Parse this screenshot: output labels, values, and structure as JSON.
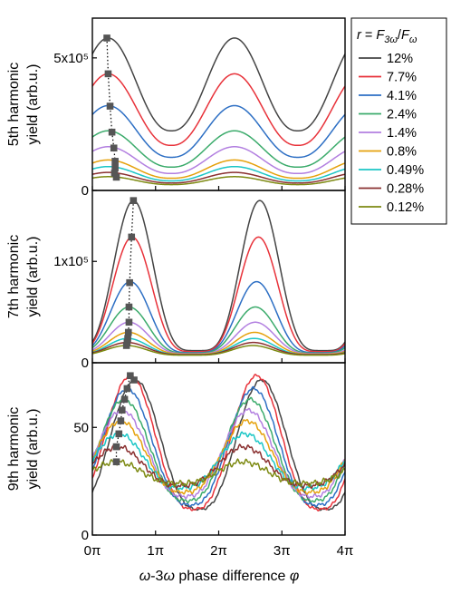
{
  "chart_data": [
    {
      "type": "line",
      "ylabel": "5th harmonic yield (arb.u.)",
      "ylabel_lines": [
        "5th harmonic",
        "yield (arb.u.)"
      ],
      "ylim": [
        0,
        650000
      ],
      "yticks": [
        {
          "value": 0,
          "label": "0"
        },
        {
          "value": 500000,
          "label": "5x10⁵"
        }
      ],
      "xlim": [
        0,
        4
      ],
      "x_unit": "π",
      "series": [
        {
          "name": "12%",
          "color": "#444444",
          "peaks_x": [
            0.25,
            2.25
          ],
          "peak": 575000,
          "trough": 225000,
          "marker": [
            0.23,
            575000
          ]
        },
        {
          "name": "7.7%",
          "color": "#e8323a",
          "peaks_x": [
            0.25,
            2.25
          ],
          "peak": 440000,
          "trough": 170000,
          "marker": [
            0.25,
            440000
          ]
        },
        {
          "name": "4.1%",
          "color": "#2d6fc4",
          "peaks_x": [
            0.25,
            2.25
          ],
          "peak": 320000,
          "trough": 125000,
          "marker": [
            0.28,
            318000
          ]
        },
        {
          "name": "2.4%",
          "color": "#3bab6b",
          "peaks_x": [
            0.25,
            2.25
          ],
          "peak": 225000,
          "trough": 88000,
          "marker": [
            0.31,
            220000
          ]
        },
        {
          "name": "1.4%",
          "color": "#b27fe0",
          "peaks_x": [
            0.25,
            2.25
          ],
          "peak": 165000,
          "trough": 64000,
          "marker": [
            0.34,
            160000
          ]
        },
        {
          "name": "0.8%",
          "color": "#e5a10c",
          "peaks_x": [
            0.25,
            2.25
          ],
          "peak": 115000,
          "trough": 46000,
          "marker": [
            0.36,
            110000
          ]
        },
        {
          "name": "0.49%",
          "color": "#1cc6c6",
          "peaks_x": [
            0.25,
            2.25
          ],
          "peak": 90000,
          "trough": 36000,
          "marker": [
            0.36,
            85000
          ]
        },
        {
          "name": "0.28%",
          "color": "#8a3030",
          "peaks_x": [
            0.25,
            2.25
          ],
          "peak": 68000,
          "trough": 28000,
          "marker": [
            0.35,
            65000
          ]
        },
        {
          "name": "0.12%",
          "color": "#7d8a12",
          "peaks_x": [
            0.25,
            2.25
          ],
          "peak": 52000,
          "trough": 22000,
          "marker": [
            0.38,
            50000
          ]
        }
      ]
    },
    {
      "type": "line",
      "ylabel": "7th harmonic yield (arb.u.)",
      "ylabel_lines": [
        "7th harmonic",
        "yield (arb.u.)"
      ],
      "ylim": [
        0,
        170000
      ],
      "yticks": [
        {
          "value": 0,
          "label": "0"
        },
        {
          "value": 100000,
          "label": "1x10⁵"
        }
      ],
      "xlim": [
        0,
        4
      ],
      "x_unit": "π",
      "series": [
        {
          "name": "12%",
          "peaks_x": [
            0.65,
            2.65
          ],
          "peak": 160000,
          "trough": 12000,
          "marker": [
            0.65,
            160000
          ]
        },
        {
          "name": "7.7%",
          "peaks_x": [
            0.63,
            2.63
          ],
          "peak": 124000,
          "trough": 11000,
          "marker": [
            0.62,
            124000
          ]
        },
        {
          "name": "4.1%",
          "peaks_x": [
            0.6,
            2.6
          ],
          "peak": 80000,
          "trough": 10000,
          "marker": [
            0.59,
            79000
          ]
        },
        {
          "name": "2.4%",
          "peaks_x": [
            0.58,
            2.58
          ],
          "peak": 55000,
          "trough": 9500,
          "marker": [
            0.58,
            55000
          ]
        },
        {
          "name": "1.4%",
          "peaks_x": [
            0.58,
            2.58
          ],
          "peak": 40000,
          "trough": 9000,
          "marker": [
            0.58,
            40000
          ]
        },
        {
          "name": "0.8%",
          "peaks_x": [
            0.57,
            2.57
          ],
          "peak": 30000,
          "trough": 8500,
          "marker": [
            0.57,
            30000
          ]
        },
        {
          "name": "0.49%",
          "peaks_x": [
            0.56,
            2.56
          ],
          "peak": 24000,
          "trough": 8000,
          "marker": [
            0.56,
            24000
          ]
        },
        {
          "name": "0.28%",
          "peaks_x": [
            0.55,
            2.55
          ],
          "peak": 20000,
          "trough": 8000,
          "marker": [
            0.55,
            20000
          ]
        },
        {
          "name": "0.12%",
          "peaks_x": [
            0.54,
            2.54
          ],
          "peak": 17000,
          "trough": 7500,
          "marker": [
            0.54,
            17000
          ]
        }
      ]
    },
    {
      "type": "line",
      "ylabel": "9th harmonic yield (arb.u.)",
      "ylabel_lines": [
        "9th harmonic",
        "yield (arb.u.)"
      ],
      "ylim": [
        0,
        80
      ],
      "yticks": [
        {
          "value": 0,
          "label": "0"
        },
        {
          "value": 50,
          "label": "50"
        }
      ],
      "xlim": [
        0,
        4
      ],
      "x_unit": "π",
      "series": [
        {
          "name": "12%",
          "peaks_x": [
            0.68,
            2.68
          ],
          "peak": 72,
          "trough": 12,
          "marker": [
            0.66,
            72
          ]
        },
        {
          "name": "7.7%",
          "peaks_x": [
            0.6,
            2.6
          ],
          "peak": 74,
          "trough": 12,
          "marker": [
            0.6,
            74
          ]
        },
        {
          "name": "4.1%",
          "peaks_x": [
            0.55,
            2.55
          ],
          "peak": 68,
          "trough": 14,
          "marker": [
            0.55,
            68
          ]
        },
        {
          "name": "2.4%",
          "peaks_x": [
            0.5,
            2.5
          ],
          "peak": 63,
          "trough": 16,
          "marker": [
            0.51,
            63
          ]
        },
        {
          "name": "1.4%",
          "peaks_x": [
            0.47,
            2.47
          ],
          "peak": 58,
          "trough": 18,
          "marker": [
            0.47,
            58
          ]
        },
        {
          "name": "0.8%",
          "peaks_x": [
            0.45,
            2.45
          ],
          "peak": 53,
          "trough": 20,
          "marker": [
            0.45,
            53
          ]
        },
        {
          "name": "0.49%",
          "peaks_x": [
            0.42,
            2.42
          ],
          "peak": 47,
          "trough": 22,
          "marker": [
            0.42,
            47
          ]
        },
        {
          "name": "0.28%",
          "peaks_x": [
            0.4,
            2.4
          ],
          "peak": 41,
          "trough": 23,
          "marker": [
            0.38,
            41
          ]
        },
        {
          "name": "0.12%",
          "peaks_x": [
            0.38,
            2.38
          ],
          "peak": 34,
          "trough": 24,
          "marker": [
            0.38,
            34
          ]
        }
      ]
    }
  ],
  "xaxis": {
    "ticks": [
      {
        "value": 0,
        "label": "0π"
      },
      {
        "value": 1,
        "label": "1π"
      },
      {
        "value": 2,
        "label": "2π"
      },
      {
        "value": 3,
        "label": "3π"
      },
      {
        "value": 4,
        "label": "4π"
      }
    ],
    "label": "ω-3ω phase difference φ",
    "label_parts": [
      "ω",
      "-3",
      "ω",
      " phase difference ",
      "φ"
    ]
  },
  "legend": {
    "title_parts": [
      "r",
      " = ",
      "F",
      "3ω",
      "/",
      "F",
      "ω"
    ],
    "title": "r = F3ω/Fω",
    "placement": "top-right, outside"
  }
}
